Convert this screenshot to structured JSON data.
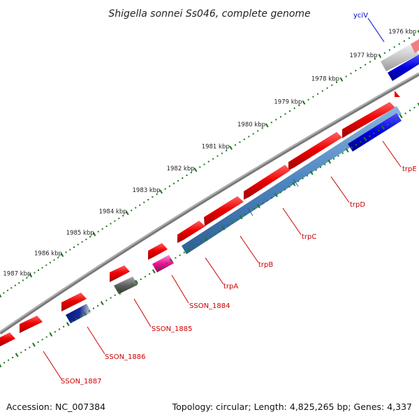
{
  "title": "Shigella sonnei Ss046, complete genome",
  "footer": {
    "accession": "Accession: NC_007384",
    "summary": "Topology: circular; Length: 4,825,265 bp; Genes: 4,337"
  },
  "scale_labels": [
    "1976 kbp",
    "1977 kbp",
    "1978 kbp",
    "1979 kbp",
    "1980 kbp",
    "1981 kbp",
    "1982 kbp",
    "1983 kbp",
    "1984 kbp",
    "1985 kbp",
    "1986 kbp",
    "1987 kbp"
  ],
  "genes": [
    {
      "name": "yciV",
      "color": "#0000cc"
    },
    {
      "name": "trpE",
      "color": "#cc0000"
    },
    {
      "name": "trpD",
      "color": "#cc0000"
    },
    {
      "name": "trpC",
      "color": "#cc0000"
    },
    {
      "name": "trpB",
      "color": "#cc0000"
    },
    {
      "name": "trpA",
      "color": "#cc0000"
    },
    {
      "name": "SSON_1884",
      "color": "#cc0000"
    },
    {
      "name": "SSON_1885",
      "color": "#cc0000"
    },
    {
      "name": "SSON_1886",
      "color": "#cc0000"
    },
    {
      "name": "SSON_1887",
      "color": "#cc0000"
    }
  ],
  "colors": {
    "backbone": "#808080",
    "cds_forward": "#ee0000",
    "feature_blue": "#4f86c0",
    "feature_darkblue": "#0000dd",
    "feature_navy": "#001a80",
    "feature_pink": "#ee1199",
    "feature_gray": "#606060",
    "tick_green": "#1f7a1f"
  }
}
